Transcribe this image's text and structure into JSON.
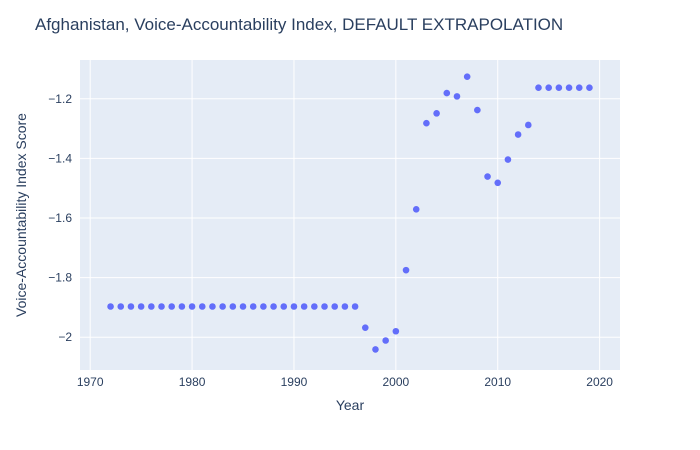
{
  "chart_data": {
    "type": "scatter",
    "title": "Afghanistan, Voice-Accountability Index, DEFAULT EXTRAPOLATION",
    "xlabel": "Year",
    "ylabel": "Voice-Accountability Index Score",
    "xlim": [
      1969,
      2022
    ],
    "ylim": [
      -2.11,
      -1.07
    ],
    "xticks": [
      1970,
      1980,
      1990,
      2000,
      2010,
      2020
    ],
    "yticks": [
      -2,
      -1.8,
      -1.6,
      -1.4,
      -1.2
    ],
    "ytick_labels": [
      "−2",
      "−1.8",
      "−1.6",
      "−1.4",
      "−1.2"
    ],
    "grid": true,
    "legend": "none",
    "marker_color": "#636efa",
    "plot_bg": "#e5ecf6",
    "x": [
      1972,
      1973,
      1974,
      1975,
      1976,
      1977,
      1978,
      1979,
      1980,
      1981,
      1982,
      1983,
      1984,
      1985,
      1986,
      1987,
      1988,
      1989,
      1990,
      1991,
      1992,
      1993,
      1994,
      1995,
      1996,
      1997,
      1998,
      1999,
      2000,
      2001,
      2002,
      2003,
      2004,
      2005,
      2006,
      2007,
      2008,
      2009,
      2010,
      2011,
      2012,
      2013,
      2014,
      2015,
      2016,
      2017,
      2018,
      2019
    ],
    "y": [
      -1.897,
      -1.897,
      -1.897,
      -1.897,
      -1.897,
      -1.897,
      -1.897,
      -1.897,
      -1.897,
      -1.897,
      -1.897,
      -1.897,
      -1.897,
      -1.897,
      -1.897,
      -1.897,
      -1.897,
      -1.897,
      -1.897,
      -1.897,
      -1.897,
      -1.897,
      -1.897,
      -1.897,
      -1.897,
      -1.968,
      -2.041,
      -2.011,
      -1.98,
      -1.775,
      -1.571,
      -1.282,
      -1.249,
      -1.181,
      -1.192,
      -1.126,
      -1.238,
      -1.461,
      -1.482,
      -1.404,
      -1.32,
      -1.288,
      -1.163,
      -1.163,
      -1.163,
      -1.163,
      -1.163,
      -1.163
    ]
  }
}
